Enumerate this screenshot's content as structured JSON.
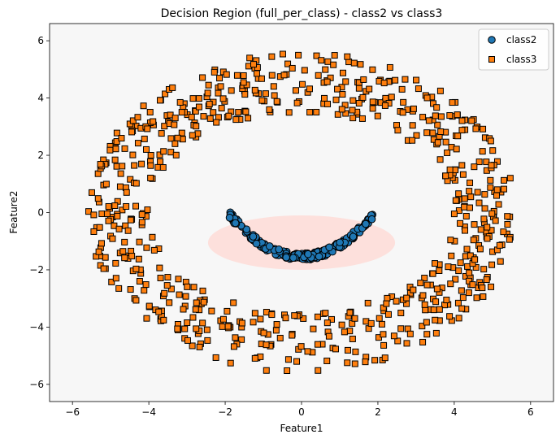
{
  "chart_data": {
    "type": "scatter",
    "title": "Decision Region (full_per_class) - class2 vs class3",
    "xlabel": "Feature1",
    "ylabel": "Feature2",
    "xlim": [
      -6.6,
      6.6
    ],
    "ylim": [
      -6.6,
      6.6
    ],
    "xticks": [
      -6,
      -4,
      -2,
      0,
      2,
      4,
      6
    ],
    "yticks": [
      -6,
      -4,
      -2,
      0,
      2,
      4,
      6
    ],
    "grid": false,
    "legend_position": "top-right",
    "background_region_color": "#f7f7f7",
    "decision_region": {
      "label": "class2",
      "color": "#fde0dc",
      "shape": "ellipse",
      "center": [
        0,
        -1.05
      ],
      "radii": [
        2.45,
        0.95
      ]
    },
    "series": [
      {
        "name": "class2",
        "marker": "circle",
        "color": "#1f77b4",
        "edge": "#000000",
        "distribution": "inner arc",
        "arc": {
          "x_range": [
            -1.9,
            1.9
          ],
          "y_at_center": -1.55,
          "y_at_ends": -0.05,
          "jitter": 0.12
        },
        "count": 220
      },
      {
        "name": "class3",
        "marker": "square",
        "color": "#ff7f0e",
        "edge": "#000000",
        "distribution": "outer ring",
        "ring": {
          "center": [
            0,
            0
          ],
          "x_radius": [
            4.0,
            5.6
          ],
          "y_radius": [
            3.5,
            5.6
          ]
        },
        "count": 700
      }
    ]
  }
}
